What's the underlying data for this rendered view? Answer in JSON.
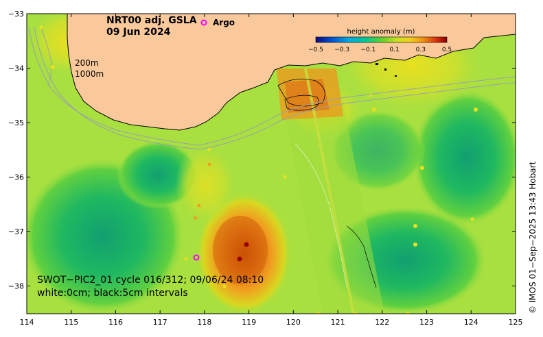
{
  "title": {
    "product": "NRT00 adj. GSLA",
    "date": "09 Jun 2024"
  },
  "legend": {
    "argo_label": "Argo",
    "argo_color": "#ff00ff"
  },
  "depth_contours": {
    "label_200": "200m",
    "label_1000": "1000m"
  },
  "colorbar": {
    "title": "height anomaly (m)",
    "tick_labels": [
      "−0.5",
      "−0.3",
      "−0.1",
      "0.1",
      "0.3",
      "0.5"
    ],
    "colors": [
      "#0a0a80",
      "#0050d0",
      "#00a8e0",
      "#00c896",
      "#30c040",
      "#90d820",
      "#e8e020",
      "#f0a010",
      "#e05010",
      "#a00000"
    ]
  },
  "swot": {
    "line1": "SWOT−PIC2_01 cycle 016/312; 09/06/24 08:10",
    "line2": "white:0cm; black:5cm intervals"
  },
  "credit": "© IMOS 01−Sep−2025 13:43 Hobart",
  "axes": {
    "x_ticks": [
      "114",
      "115",
      "116",
      "117",
      "118",
      "119",
      "120",
      "121",
      "122",
      "123",
      "124",
      "125"
    ],
    "y_ticks": [
      "−33",
      "−34",
      "−35",
      "−36",
      "−37",
      "−38"
    ]
  },
  "colors": {
    "land": "#f9c99b",
    "ocean_base": "#a8e040",
    "high_anomaly": "#e07010",
    "low_anomaly": "#20b070"
  }
}
